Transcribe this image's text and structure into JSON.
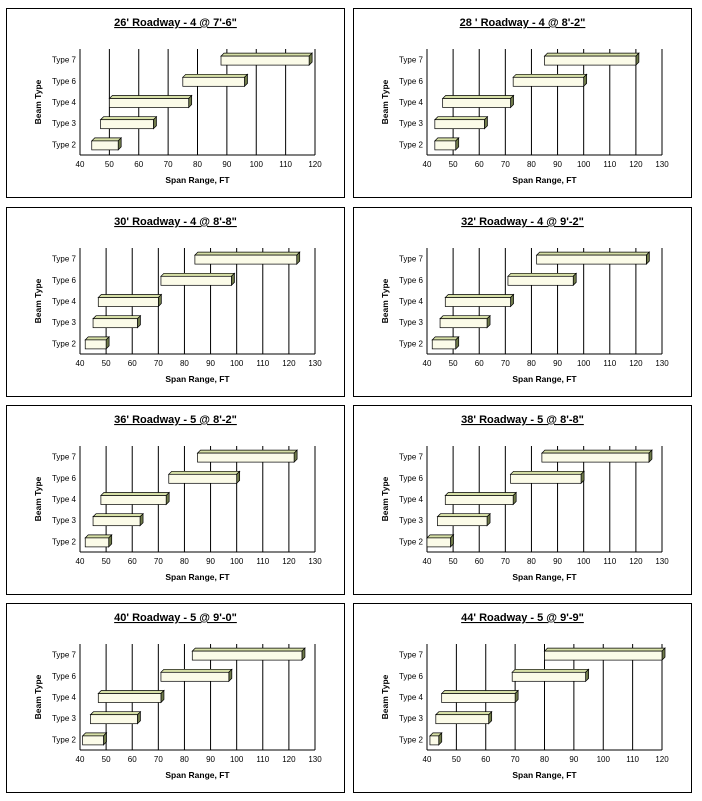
{
  "chart_data": [
    {
      "type": "bar",
      "orientation": "horizontal-range",
      "title": "26' Roadway - 4 @ 7'-6\"",
      "xlabel": "Span Range, FT",
      "ylabel": "Beam Type",
      "xlim": [
        40,
        120
      ],
      "xticks": [
        40,
        50,
        60,
        70,
        80,
        90,
        100,
        110,
        120
      ],
      "categories": [
        "Type 7",
        "Type 6",
        "Type 4",
        "Type 3",
        "Type 2"
      ],
      "ranges": [
        [
          88,
          118
        ],
        [
          75,
          96
        ],
        [
          50,
          77
        ],
        [
          47,
          65
        ],
        [
          44,
          53
        ]
      ]
    },
    {
      "type": "bar",
      "orientation": "horizontal-range",
      "title": "28 ' Roadway - 4 @ 8'-2\"",
      "xlabel": "Span Range, FT",
      "ylabel": "Beam Type",
      "xlim": [
        40,
        130
      ],
      "xticks": [
        40,
        50,
        60,
        70,
        80,
        90,
        100,
        110,
        120,
        130
      ],
      "categories": [
        "Type 7",
        "Type 6",
        "Type 4",
        "Type 3",
        "Type 2"
      ],
      "ranges": [
        [
          85,
          120
        ],
        [
          73,
          100
        ],
        [
          46,
          72
        ],
        [
          43,
          62
        ],
        [
          43,
          51
        ]
      ]
    },
    {
      "type": "bar",
      "orientation": "horizontal-range",
      "title": "30' Roadway - 4 @ 8'-8\"",
      "xlabel": "Span Range, FT",
      "ylabel": "Beam Type",
      "xlim": [
        40,
        130
      ],
      "xticks": [
        40,
        50,
        60,
        70,
        80,
        90,
        100,
        110,
        120,
        130
      ],
      "categories": [
        "Type 7",
        "Type 6",
        "Type 4",
        "Type 3",
        "Type 2"
      ],
      "ranges": [
        [
          84,
          123
        ],
        [
          71,
          98
        ],
        [
          47,
          70
        ],
        [
          45,
          62
        ],
        [
          42,
          50
        ]
      ]
    },
    {
      "type": "bar",
      "orientation": "horizontal-range",
      "title": "32' Roadway - 4 @ 9'-2\"",
      "xlabel": "Span Range, FT",
      "ylabel": "Beam Type",
      "xlim": [
        40,
        130
      ],
      "xticks": [
        40,
        50,
        60,
        70,
        80,
        90,
        100,
        110,
        120,
        130
      ],
      "categories": [
        "Type 7",
        "Type 6",
        "Type 4",
        "Type 3",
        "Type 2"
      ],
      "ranges": [
        [
          82,
          124
        ],
        [
          71,
          96
        ],
        [
          47,
          72
        ],
        [
          45,
          63
        ],
        [
          42,
          51
        ]
      ]
    },
    {
      "type": "bar",
      "orientation": "horizontal-range",
      "title": "36' Roadway - 5 @ 8'-2\"",
      "xlabel": "Span Range, FT",
      "ylabel": "Beam Type",
      "xlim": [
        40,
        130
      ],
      "xticks": [
        40,
        50,
        60,
        70,
        80,
        90,
        100,
        110,
        120,
        130
      ],
      "categories": [
        "Type 7",
        "Type 6",
        "Type 4",
        "Type 3",
        "Type 2"
      ],
      "ranges": [
        [
          85,
          122
        ],
        [
          74,
          100
        ],
        [
          48,
          73
        ],
        [
          45,
          63
        ],
        [
          42,
          51
        ]
      ]
    },
    {
      "type": "bar",
      "orientation": "horizontal-range",
      "title": "38' Roadway - 5 @ 8'-8\"",
      "xlabel": "Span Range, FT",
      "ylabel": "Beam Type",
      "xlim": [
        40,
        130
      ],
      "xticks": [
        40,
        50,
        60,
        70,
        80,
        90,
        100,
        110,
        120,
        130
      ],
      "categories": [
        "Type 7",
        "Type 6",
        "Type 4",
        "Type 3",
        "Type 2"
      ],
      "ranges": [
        [
          84,
          125
        ],
        [
          72,
          99
        ],
        [
          47,
          73
        ],
        [
          44,
          63
        ],
        [
          40,
          49
        ]
      ]
    },
    {
      "type": "bar",
      "orientation": "horizontal-range",
      "title": "40' Roadway - 5 @ 9'-0\"",
      "xlabel": "Span Range, FT",
      "ylabel": "Beam Type",
      "xlim": [
        40,
        130
      ],
      "xticks": [
        40,
        50,
        60,
        70,
        80,
        90,
        100,
        110,
        120,
        130
      ],
      "categories": [
        "Type 7",
        "Type 6",
        "Type 4",
        "Type 3",
        "Type 2"
      ],
      "ranges": [
        [
          83,
          125
        ],
        [
          71,
          97
        ],
        [
          47,
          71
        ],
        [
          44,
          62
        ],
        [
          41,
          49
        ]
      ]
    },
    {
      "type": "bar",
      "orientation": "horizontal-range",
      "title": "44' Roadway - 5 @ 9'-9\"",
      "xlabel": "Span Range, FT",
      "ylabel": "Beam Type",
      "xlim": [
        40,
        120
      ],
      "xticks": [
        40,
        50,
        60,
        70,
        80,
        90,
        100,
        110,
        120
      ],
      "categories": [
        "Type 7",
        "Type 6",
        "Type 4",
        "Type 3",
        "Type 2"
      ],
      "ranges": [
        [
          80,
          120
        ],
        [
          69,
          94
        ],
        [
          45,
          70
        ],
        [
          43,
          61
        ],
        [
          41,
          44
        ]
      ]
    }
  ],
  "colors": {
    "bar_face": "#fbfbe8",
    "bar_top": "#d6dfa6",
    "bar_side": "#6f7a4a",
    "grid": "#000000"
  }
}
